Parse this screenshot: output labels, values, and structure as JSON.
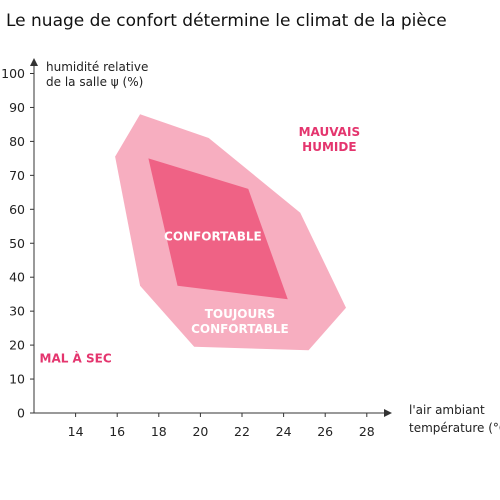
{
  "chart_data": {
    "type": "area",
    "title": "Le nuage de confort détermine le climat de la pièce",
    "ylabel_line1": "humidité relative",
    "ylabel_line2": "de la salle ψ (%)",
    "xlabel_line1": "l'air ambiant",
    "xlabel_line2": "température (°C)",
    "xlim": [
      12,
      29
    ],
    "ylim": [
      0,
      100
    ],
    "x_ticks": [
      "14",
      "16",
      "18",
      "20",
      "22",
      "24",
      "26",
      "28"
    ],
    "y_ticks": [
      "0",
      "10",
      "20",
      "30",
      "40",
      "50",
      "60",
      "70",
      "80",
      "90",
      "100"
    ],
    "grid": false,
    "colors": {
      "outer": "#f7aec0",
      "inner": "#ef6285",
      "label_on_fill": "#ffffff",
      "label_outside": "#e4356e",
      "axis": "#333333"
    },
    "regions": [
      {
        "name": "TOUJOURS CONFORTABLE",
        "label_lines": [
          "TOUJOURS",
          "CONFORTABLE"
        ],
        "label_at": [
          21.9,
          27
        ],
        "polygon": [
          [
            17.1,
            88
          ],
          [
            20.4,
            81
          ],
          [
            24.8,
            59
          ],
          [
            27.0,
            31
          ],
          [
            25.2,
            18.5
          ],
          [
            19.7,
            19.5
          ],
          [
            17.1,
            37.5
          ],
          [
            15.9,
            75.5
          ]
        ]
      },
      {
        "name": "CONFORTABLE",
        "label_lines": [
          "CONFORTABLE"
        ],
        "label_at": [
          20.6,
          52
        ],
        "polygon": [
          [
            17.5,
            75
          ],
          [
            22.3,
            66
          ],
          [
            24.2,
            33.5
          ],
          [
            18.9,
            37.5
          ]
        ]
      }
    ],
    "annotations": [
      {
        "lines": [
          "MAUVAIS",
          "HUMIDE"
        ],
        "at": [
          26.2,
          80.5
        ]
      },
      {
        "lines": [
          "MAL À SEC"
        ],
        "at": [
          14.0,
          16
        ]
      }
    ]
  }
}
